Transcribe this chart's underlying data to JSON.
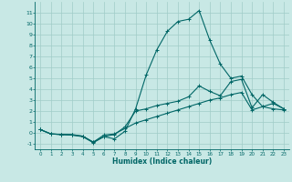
{
  "xlabel": "Humidex (Indice chaleur)",
  "bg_color": "#c8e8e5",
  "grid_color": "#a0ccc8",
  "line_color": "#006666",
  "x": [
    0,
    1,
    2,
    3,
    4,
    5,
    6,
    7,
    8,
    9,
    10,
    11,
    12,
    13,
    14,
    15,
    16,
    17,
    18,
    19,
    20,
    21,
    22,
    23
  ],
  "line1": [
    0.3,
    -0.1,
    -0.15,
    -0.15,
    -0.3,
    -0.85,
    -0.35,
    -0.55,
    0.15,
    2.2,
    5.3,
    7.6,
    9.3,
    10.2,
    10.4,
    11.2,
    8.5,
    6.3,
    5.0,
    5.2,
    3.5,
    2.4,
    2.7,
    2.2
  ],
  "line2": [
    0.3,
    -0.1,
    -0.15,
    -0.2,
    -0.35,
    -0.9,
    -0.35,
    -0.15,
    0.55,
    2.0,
    2.2,
    2.5,
    2.7,
    2.9,
    3.3,
    4.3,
    3.8,
    3.4,
    4.7,
    4.9,
    2.3,
    3.5,
    2.8,
    2.2
  ],
  "line3": [
    0.3,
    -0.1,
    -0.15,
    -0.2,
    -0.3,
    -0.85,
    -0.2,
    -0.1,
    0.4,
    0.9,
    1.2,
    1.5,
    1.8,
    2.1,
    2.4,
    2.7,
    3.0,
    3.2,
    3.5,
    3.7,
    2.1,
    2.4,
    2.2,
    2.1
  ],
  "ylim": [
    -1.5,
    12.0
  ],
  "xlim": [
    -0.5,
    23.5
  ],
  "yticks": [
    -1,
    0,
    1,
    2,
    3,
    4,
    5,
    6,
    7,
    8,
    9,
    10,
    11
  ],
  "xticks": [
    0,
    1,
    2,
    3,
    4,
    5,
    6,
    7,
    8,
    9,
    10,
    11,
    12,
    13,
    14,
    15,
    16,
    17,
    18,
    19,
    20,
    21,
    22,
    23
  ]
}
